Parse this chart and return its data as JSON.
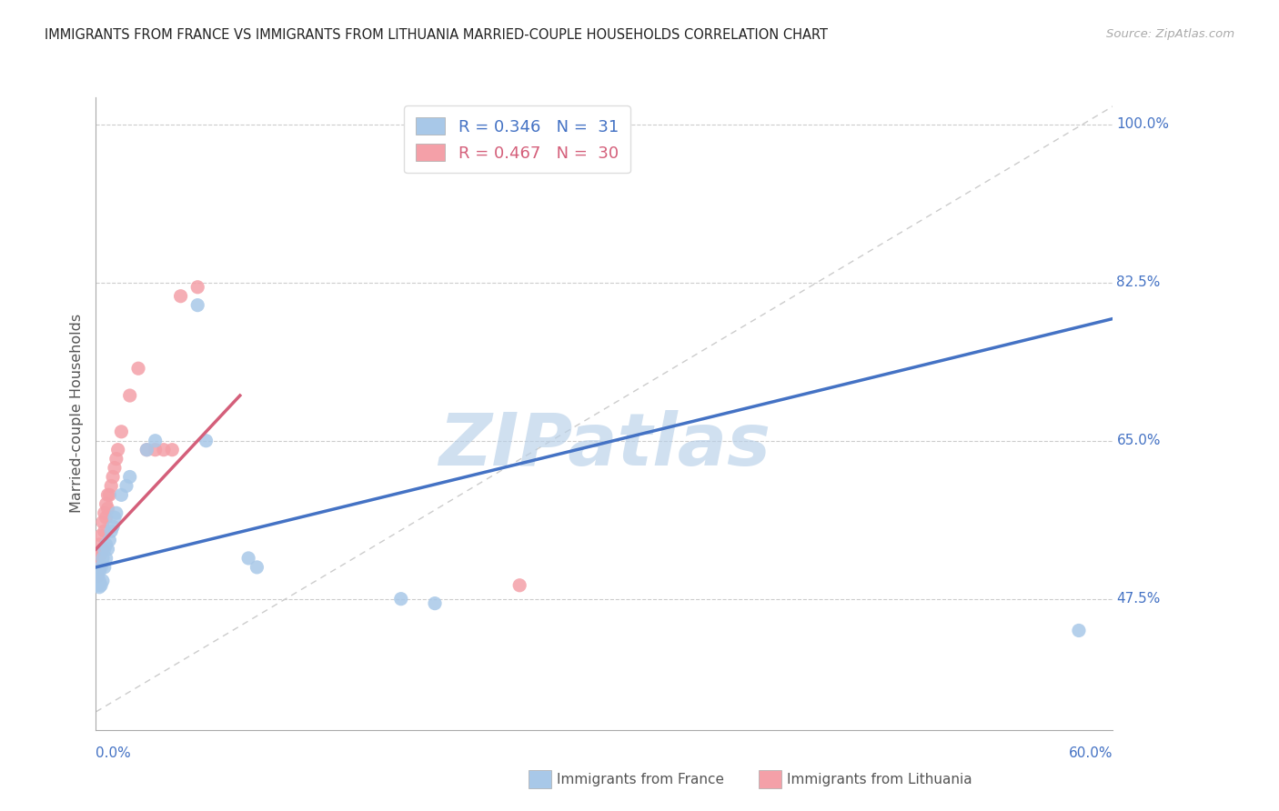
{
  "title": "IMMIGRANTS FROM FRANCE VS IMMIGRANTS FROM LITHUANIA MARRIED-COUPLE HOUSEHOLDS CORRELATION CHART",
  "source": "Source: ZipAtlas.com",
  "ylabel": "Married-couple Households",
  "france_R": "0.346",
  "france_N": "31",
  "lithuania_R": "0.467",
  "lithuania_N": "30",
  "france_color": "#a8c8e8",
  "lithuania_color": "#f4a0a8",
  "france_trend_color": "#4472c4",
  "lithuania_trend_color": "#d45f7a",
  "diag_color": "#cccccc",
  "watermark_text": "ZIPatlas",
  "watermark_color": "#b8d0e8",
  "xmin": 0.0,
  "xmax": 0.6,
  "ymin": 0.33,
  "ymax": 1.03,
  "ytick_vals": [
    0.475,
    0.65,
    0.825,
    1.0
  ],
  "ytick_labels": [
    "47.5%",
    "65.0%",
    "82.5%",
    "100.0%"
  ],
  "france_x": [
    0.001,
    0.001,
    0.002,
    0.002,
    0.002,
    0.003,
    0.003,
    0.004,
    0.004,
    0.005,
    0.005,
    0.006,
    0.006,
    0.007,
    0.008,
    0.009,
    0.01,
    0.011,
    0.012,
    0.015,
    0.018,
    0.02,
    0.03,
    0.035,
    0.06,
    0.065,
    0.09,
    0.095,
    0.18,
    0.2,
    0.58
  ],
  "france_y": [
    0.49,
    0.5,
    0.488,
    0.495,
    0.505,
    0.49,
    0.51,
    0.495,
    0.52,
    0.51,
    0.53,
    0.52,
    0.535,
    0.53,
    0.54,
    0.55,
    0.555,
    0.565,
    0.57,
    0.59,
    0.6,
    0.61,
    0.64,
    0.65,
    0.8,
    0.65,
    0.52,
    0.51,
    0.475,
    0.47,
    0.44
  ],
  "lithuania_x": [
    0.001,
    0.001,
    0.002,
    0.002,
    0.003,
    0.003,
    0.004,
    0.004,
    0.005,
    0.005,
    0.006,
    0.006,
    0.007,
    0.007,
    0.008,
    0.009,
    0.01,
    0.011,
    0.012,
    0.013,
    0.015,
    0.02,
    0.025,
    0.03,
    0.035,
    0.04,
    0.045,
    0.05,
    0.06,
    0.25
  ],
  "lithuania_y": [
    0.5,
    0.52,
    0.51,
    0.535,
    0.525,
    0.545,
    0.53,
    0.56,
    0.55,
    0.57,
    0.565,
    0.58,
    0.575,
    0.59,
    0.59,
    0.6,
    0.61,
    0.62,
    0.63,
    0.64,
    0.66,
    0.7,
    0.73,
    0.64,
    0.64,
    0.64,
    0.64,
    0.81,
    0.82,
    0.49
  ],
  "france_trend_x": [
    0.0,
    0.6
  ],
  "france_trend_y": [
    0.51,
    0.785
  ],
  "lithuania_trend_x": [
    0.0,
    0.085
  ],
  "lithuania_trend_y": [
    0.53,
    0.7
  ]
}
